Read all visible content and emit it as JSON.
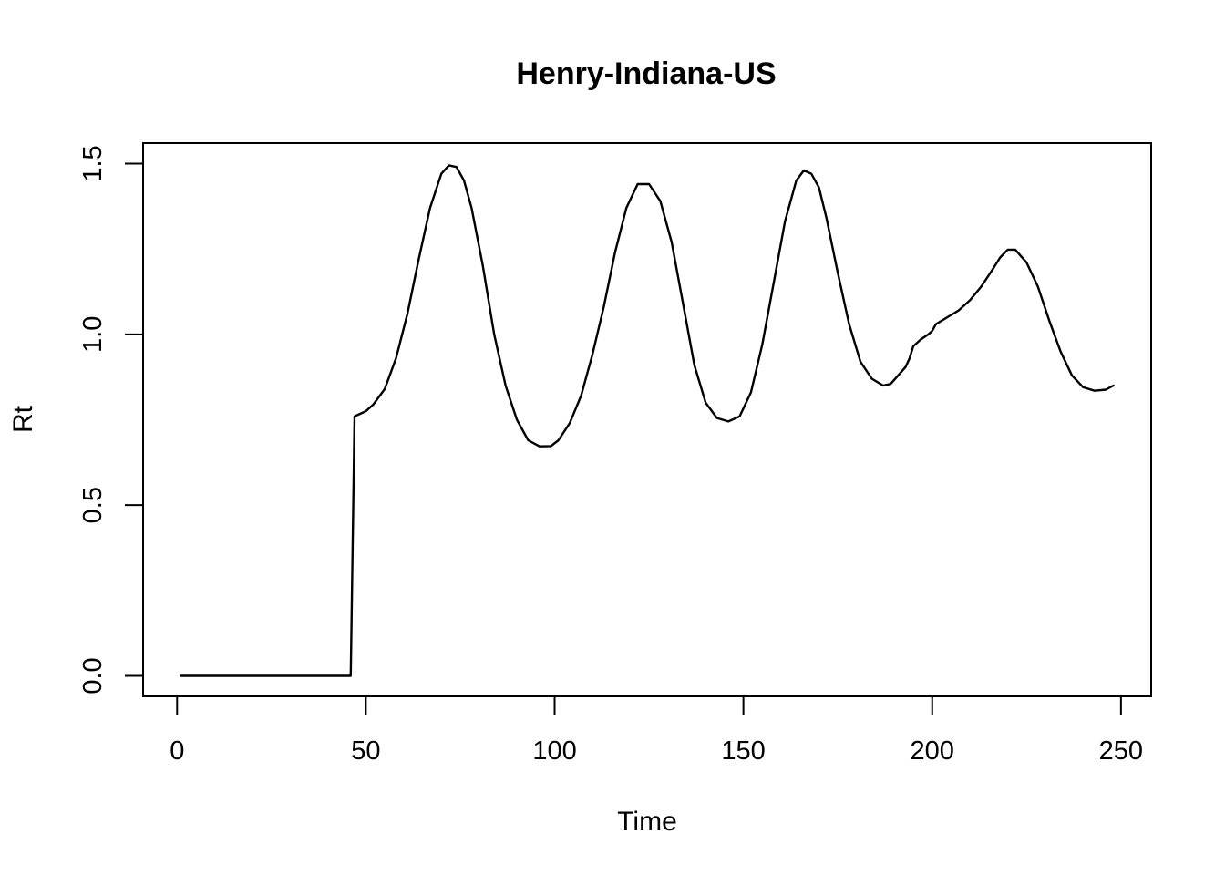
{
  "chart_data": {
    "type": "line",
    "title": "Henry-Indiana-US",
    "xlabel": "Time",
    "ylabel": "Rt",
    "xlim": [
      -9,
      258
    ],
    "ylim": [
      -0.06,
      1.56
    ],
    "xticks": [
      0,
      50,
      100,
      150,
      200,
      250
    ],
    "xtick_labels": [
      "0",
      "50",
      "100",
      "150",
      "200",
      "250"
    ],
    "yticks": [
      0.0,
      0.5,
      1.0,
      1.5
    ],
    "ytick_labels": [
      "0.0",
      "0.5",
      "1.0",
      "1.5"
    ],
    "grid": false,
    "legend": "none",
    "line_color": "#000000",
    "series": [
      {
        "x": [
          1,
          46,
          47,
          48,
          50,
          52,
          55,
          58,
          61,
          64,
          67,
          70,
          72,
          74,
          76,
          78,
          81,
          84,
          87,
          90,
          93,
          96,
          99,
          101,
          104,
          107,
          110,
          113,
          116,
          119,
          122,
          125,
          128,
          131,
          134,
          137,
          140,
          143,
          146,
          149,
          152,
          155,
          158,
          161,
          164,
          166,
          168,
          170,
          172,
          175,
          178,
          181,
          184,
          187,
          189,
          191,
          193,
          194,
          195,
          197,
          199,
          200,
          201,
          204,
          207,
          210,
          213,
          216,
          218,
          220,
          222,
          225,
          228,
          231,
          234,
          237,
          240,
          243,
          246,
          248
        ],
        "y": [
          0.0,
          0.0,
          0.76,
          0.765,
          0.775,
          0.795,
          0.84,
          0.93,
          1.06,
          1.22,
          1.37,
          1.47,
          1.495,
          1.49,
          1.45,
          1.37,
          1.2,
          1.0,
          0.85,
          0.75,
          0.69,
          0.672,
          0.673,
          0.69,
          0.74,
          0.82,
          0.94,
          1.08,
          1.24,
          1.37,
          1.44,
          1.44,
          1.39,
          1.27,
          1.09,
          0.91,
          0.8,
          0.755,
          0.745,
          0.76,
          0.83,
          0.97,
          1.15,
          1.33,
          1.45,
          1.48,
          1.47,
          1.43,
          1.34,
          1.18,
          1.03,
          0.92,
          0.87,
          0.85,
          0.855,
          0.88,
          0.905,
          0.93,
          0.965,
          0.985,
          1.0,
          1.01,
          1.03,
          1.05,
          1.07,
          1.1,
          1.14,
          1.19,
          1.225,
          1.248,
          1.248,
          1.21,
          1.14,
          1.04,
          0.95,
          0.88,
          0.845,
          0.835,
          0.838,
          0.85
        ]
      }
    ]
  }
}
